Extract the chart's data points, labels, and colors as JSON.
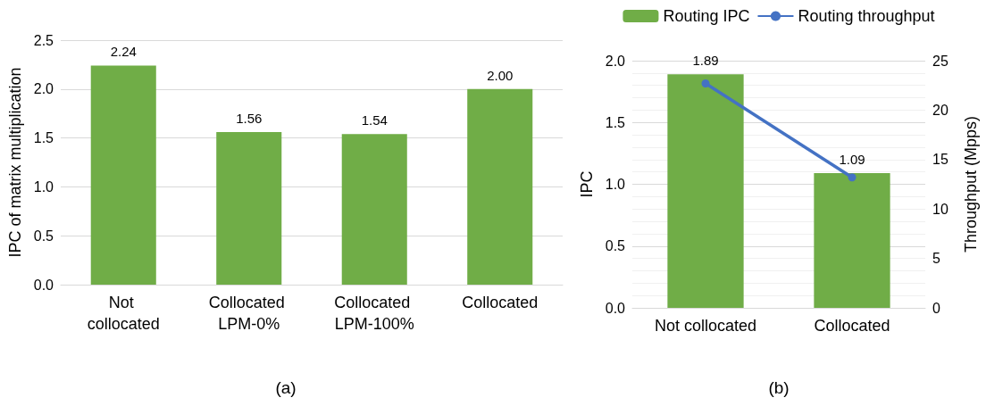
{
  "chart_data": [
    {
      "type": "bar",
      "title": "(a)",
      "ylabel": "IPC of matrix multiplication",
      "categories": [
        "Not collocated",
        "Collocated LPM-0%",
        "Collocated LPM-100%",
        "Collocated"
      ],
      "series": [
        {
          "color": "#70ad47",
          "values": [
            2.24,
            1.56,
            1.54,
            2.0
          ],
          "value_labels": [
            "2.24",
            "1.56",
            "1.54",
            "2.00"
          ]
        }
      ],
      "ylim": [
        0,
        2.5
      ],
      "yticks": [
        "0.0",
        "0.5",
        "1.0",
        "1.5",
        "2.0",
        "2.5"
      ],
      "grid": "y",
      "legend": false
    },
    {
      "type": "bar",
      "title": "(b)",
      "ylabel": "IPC",
      "y2label": "Throughput (Mpps)",
      "categories": [
        "Not collocated",
        "Collocated"
      ],
      "series": [
        {
          "name": "Routing IPC",
          "color": "#70ad47",
          "values": [
            1.89,
            1.09
          ],
          "value_labels": [
            "1.89",
            "1.09"
          ]
        },
        {
          "name": "Routing throughput",
          "type": "line",
          "axis": "y2",
          "color": "#4472c4",
          "values": [
            22.7,
            13.2
          ]
        }
      ],
      "ylim": [
        0,
        2.0
      ],
      "yticks": [
        "0.0",
        "0.5",
        "1.0",
        "1.5",
        "2.0"
      ],
      "y2lim": [
        0,
        25
      ],
      "y2ticks": [
        0,
        5,
        10,
        15,
        20,
        25
      ],
      "grid": "y",
      "legend": "top",
      "marker": "circle"
    }
  ]
}
